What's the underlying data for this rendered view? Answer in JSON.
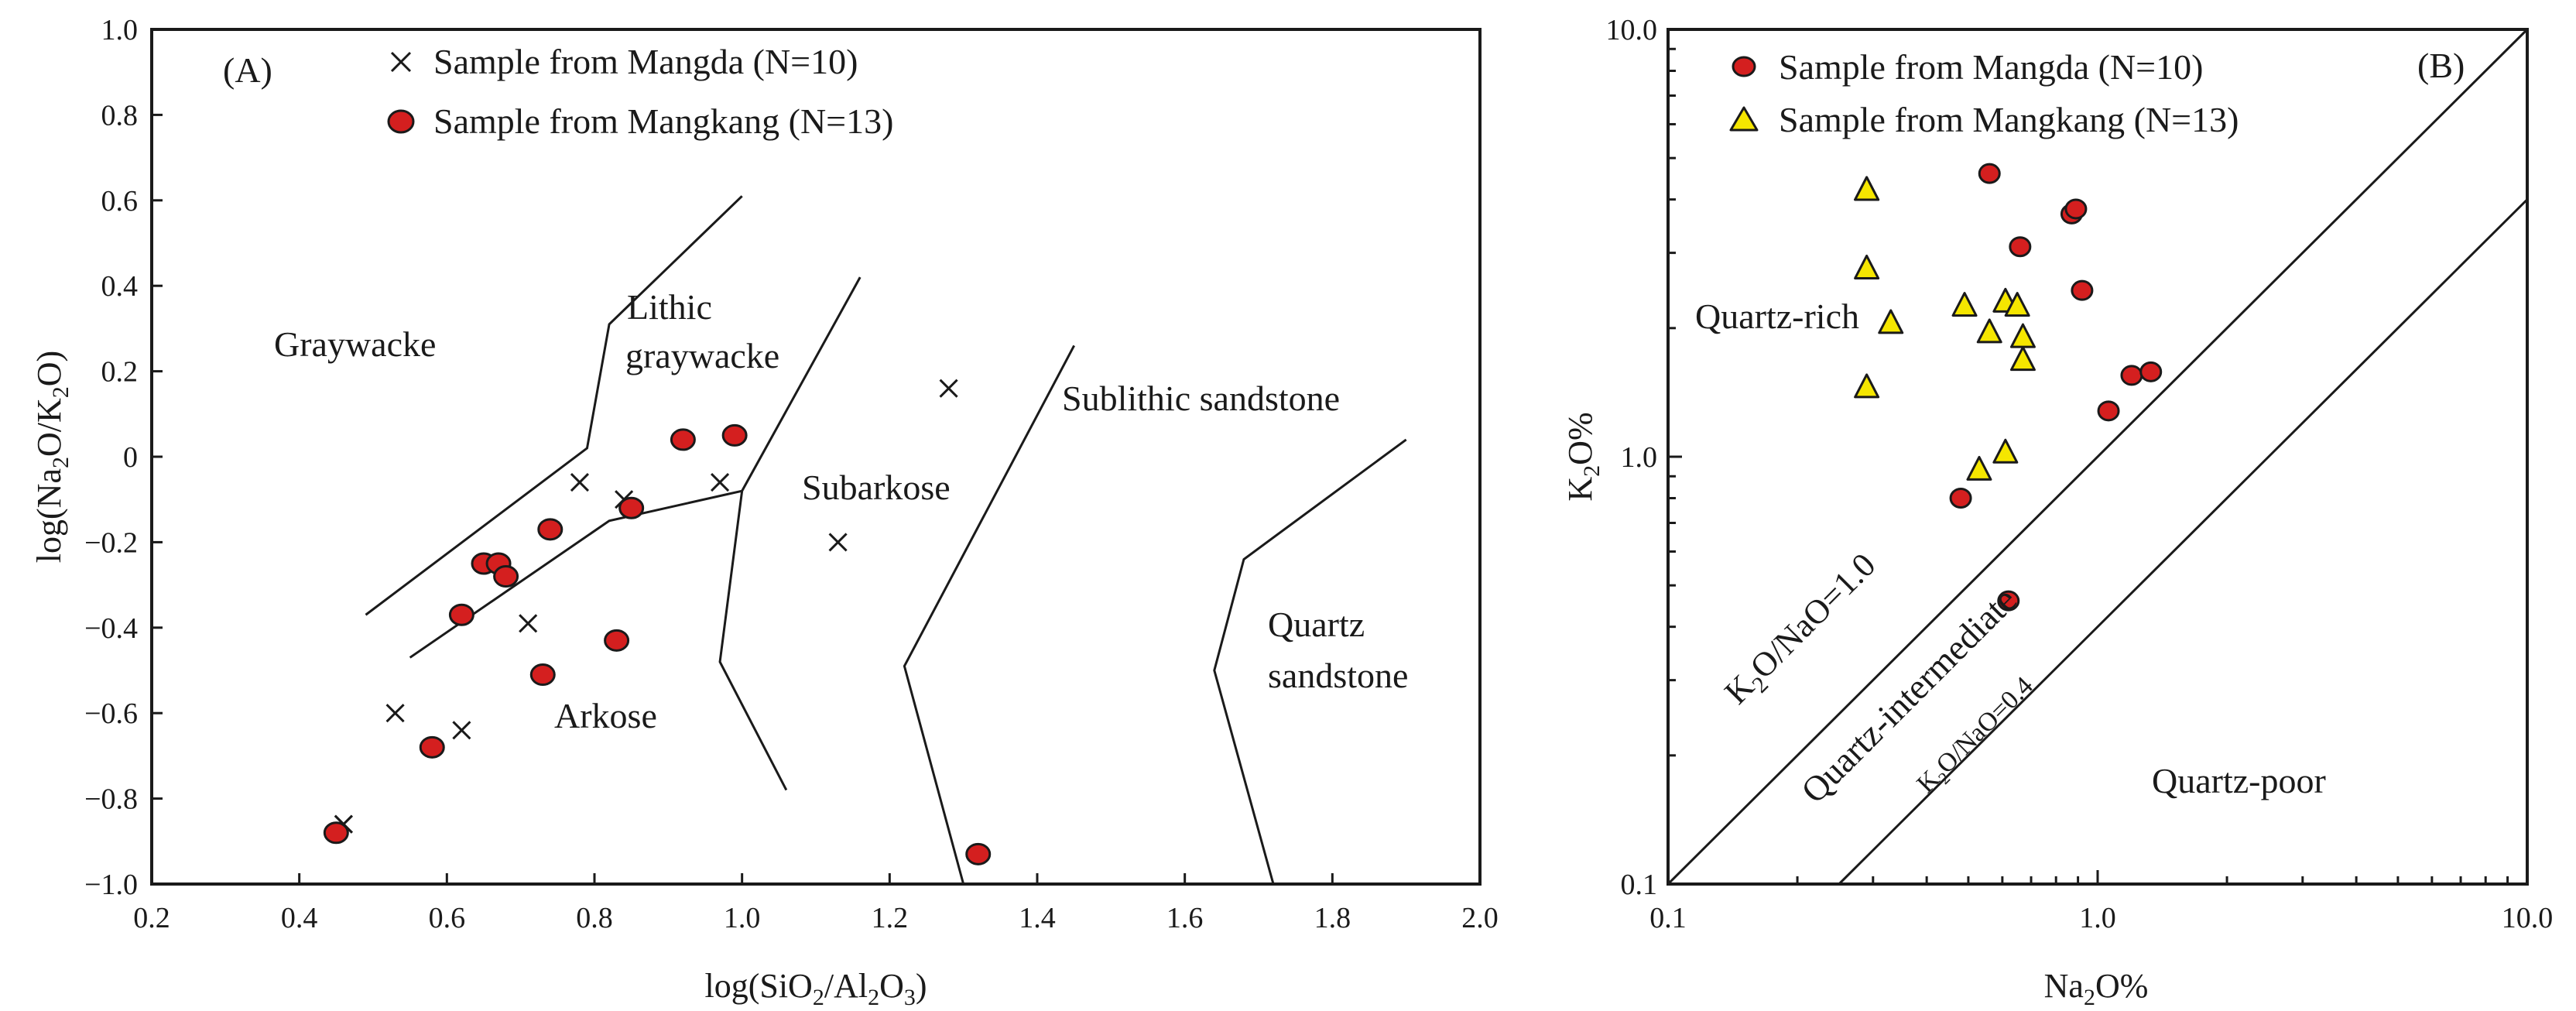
{
  "chart_data": [
    {
      "id": "A",
      "type": "scatter",
      "panel_label": "(A)",
      "xlabel": "log(SiO2/Al2O3)",
      "ylabel": "log(Na2O/K2O)",
      "xlim": [
        0.2,
        2.0
      ],
      "ylim": [
        -1.0,
        1.0
      ],
      "x_ticks": [
        "0.2",
        "0.4",
        "0.6",
        "0.8",
        "1.0",
        "1.2",
        "1.4",
        "1.6",
        "1.8",
        "2.0"
      ],
      "y_ticks": [
        "1.0",
        "0.8",
        "0.6",
        "0.4",
        "0.2",
        "0",
        "−0.2",
        "−0.4",
        "−0.6",
        "−0.8",
        "−1.0"
      ],
      "legend": [
        {
          "label": "Sample from Mangda (N=10)",
          "marker": "cross"
        },
        {
          "label": "Sample from Mangkang  (N=13)",
          "marker": "red-dot"
        }
      ],
      "fields": [
        "Graywacke",
        "Lithic",
        "graywacke",
        "Subarkose",
        "Sublithic sandstone",
        "Arkose",
        "Quartz",
        "sandstone"
      ],
      "boundaries": [
        [
          [
            0.49,
            -0.37
          ],
          [
            0.79,
            0.02
          ],
          [
            0.82,
            0.31
          ],
          [
            1.0,
            0.61
          ]
        ],
        [
          [
            0.55,
            -0.47
          ],
          [
            0.82,
            -0.15
          ],
          [
            1.0,
            -0.08
          ],
          [
            1.16,
            0.42
          ]
        ],
        [
          [
            1.0,
            -0.08
          ],
          [
            0.97,
            -0.48
          ],
          [
            1.06,
            -0.78
          ]
        ],
        [
          [
            1.45,
            0.26
          ],
          [
            1.22,
            -0.49
          ],
          [
            1.3,
            -1.0
          ]
        ],
        [
          [
            1.9,
            0.04
          ],
          [
            1.68,
            -0.24
          ],
          [
            1.64,
            -0.5
          ],
          [
            1.72,
            -1.0
          ]
        ]
      ],
      "series": [
        {
          "name": "Sample from Mangda (N=10)",
          "marker": "cross",
          "points": [
            [
              0.46,
              -0.86
            ],
            [
              0.53,
              -0.6
            ],
            [
              0.62,
              -0.64
            ],
            [
              0.71,
              -0.39
            ],
            [
              0.78,
              -0.06
            ],
            [
              0.84,
              -0.1
            ],
            [
              0.97,
              -0.06
            ],
            [
              1.13,
              -0.2
            ],
            [
              1.28,
              0.16
            ],
            [
              0.46,
              -0.86
            ]
          ]
        },
        {
          "name": "Sample from Mangkang  (N=13)",
          "marker": "red-dot",
          "points": [
            [
              0.45,
              -0.88
            ],
            [
              0.58,
              -0.68
            ],
            [
              0.62,
              -0.37
            ],
            [
              0.65,
              -0.25
            ],
            [
              0.67,
              -0.25
            ],
            [
              0.68,
              -0.28
            ],
            [
              0.73,
              -0.51
            ],
            [
              0.74,
              -0.17
            ],
            [
              0.83,
              -0.43
            ],
            [
              0.85,
              -0.12
            ],
            [
              0.92,
              0.04
            ],
            [
              0.99,
              0.05
            ],
            [
              1.32,
              -0.93
            ]
          ]
        }
      ]
    },
    {
      "id": "B",
      "type": "scatter",
      "scale": "log-log",
      "panel_label": "(B)",
      "xlabel": "Na2O%",
      "ylabel": "K2O%",
      "xlim": [
        0.1,
        10.0
      ],
      "ylim": [
        0.1,
        10.0
      ],
      "x_ticks": [
        "0.1",
        "1.0",
        "10.0"
      ],
      "y_ticks": [
        "10.0",
        "1.0",
        "0.1"
      ],
      "legend": [
        {
          "label": "Sample from Mangda (N=10)",
          "marker": "red-dot"
        },
        {
          "label": "Sample from Mangkang (N=13)",
          "marker": "yellow-triangle"
        }
      ],
      "fields": [
        "Quartz-rich",
        "Quartz-intermediate",
        "Quartz-poor"
      ],
      "ratio_lines": [
        {
          "label": "K2O/NaO=1.0",
          "ratio": 1.0
        },
        {
          "label": "K2O/NaO=0.4",
          "ratio": 0.4
        }
      ],
      "series": [
        {
          "name": "Sample from Mangda (N=10)",
          "marker": "red-dot",
          "points": [
            [
              0.56,
              4.6
            ],
            [
              0.87,
              3.7
            ],
            [
              0.89,
              3.8
            ],
            [
              0.66,
              3.1
            ],
            [
              0.92,
              2.45
            ],
            [
              1.2,
              1.55
            ],
            [
              1.33,
              1.58
            ],
            [
              1.06,
              1.28
            ],
            [
              0.48,
              0.8
            ],
            [
              0.62,
              0.46
            ]
          ]
        },
        {
          "name": "Sample from Mangkang (N=13)",
          "marker": "yellow-triangle",
          "points": [
            [
              0.29,
              4.2
            ],
            [
              0.29,
              2.75
            ],
            [
              0.33,
              2.05
            ],
            [
              0.29,
              1.45
            ],
            [
              0.49,
              2.25
            ],
            [
              0.61,
              2.3
            ],
            [
              0.65,
              2.25
            ],
            [
              0.56,
              1.95
            ],
            [
              0.67,
              1.9
            ],
            [
              0.67,
              1.68
            ],
            [
              0.61,
              1.02
            ],
            [
              0.53,
              0.93
            ],
            [
              0.29,
              4.2
            ]
          ]
        }
      ]
    }
  ]
}
